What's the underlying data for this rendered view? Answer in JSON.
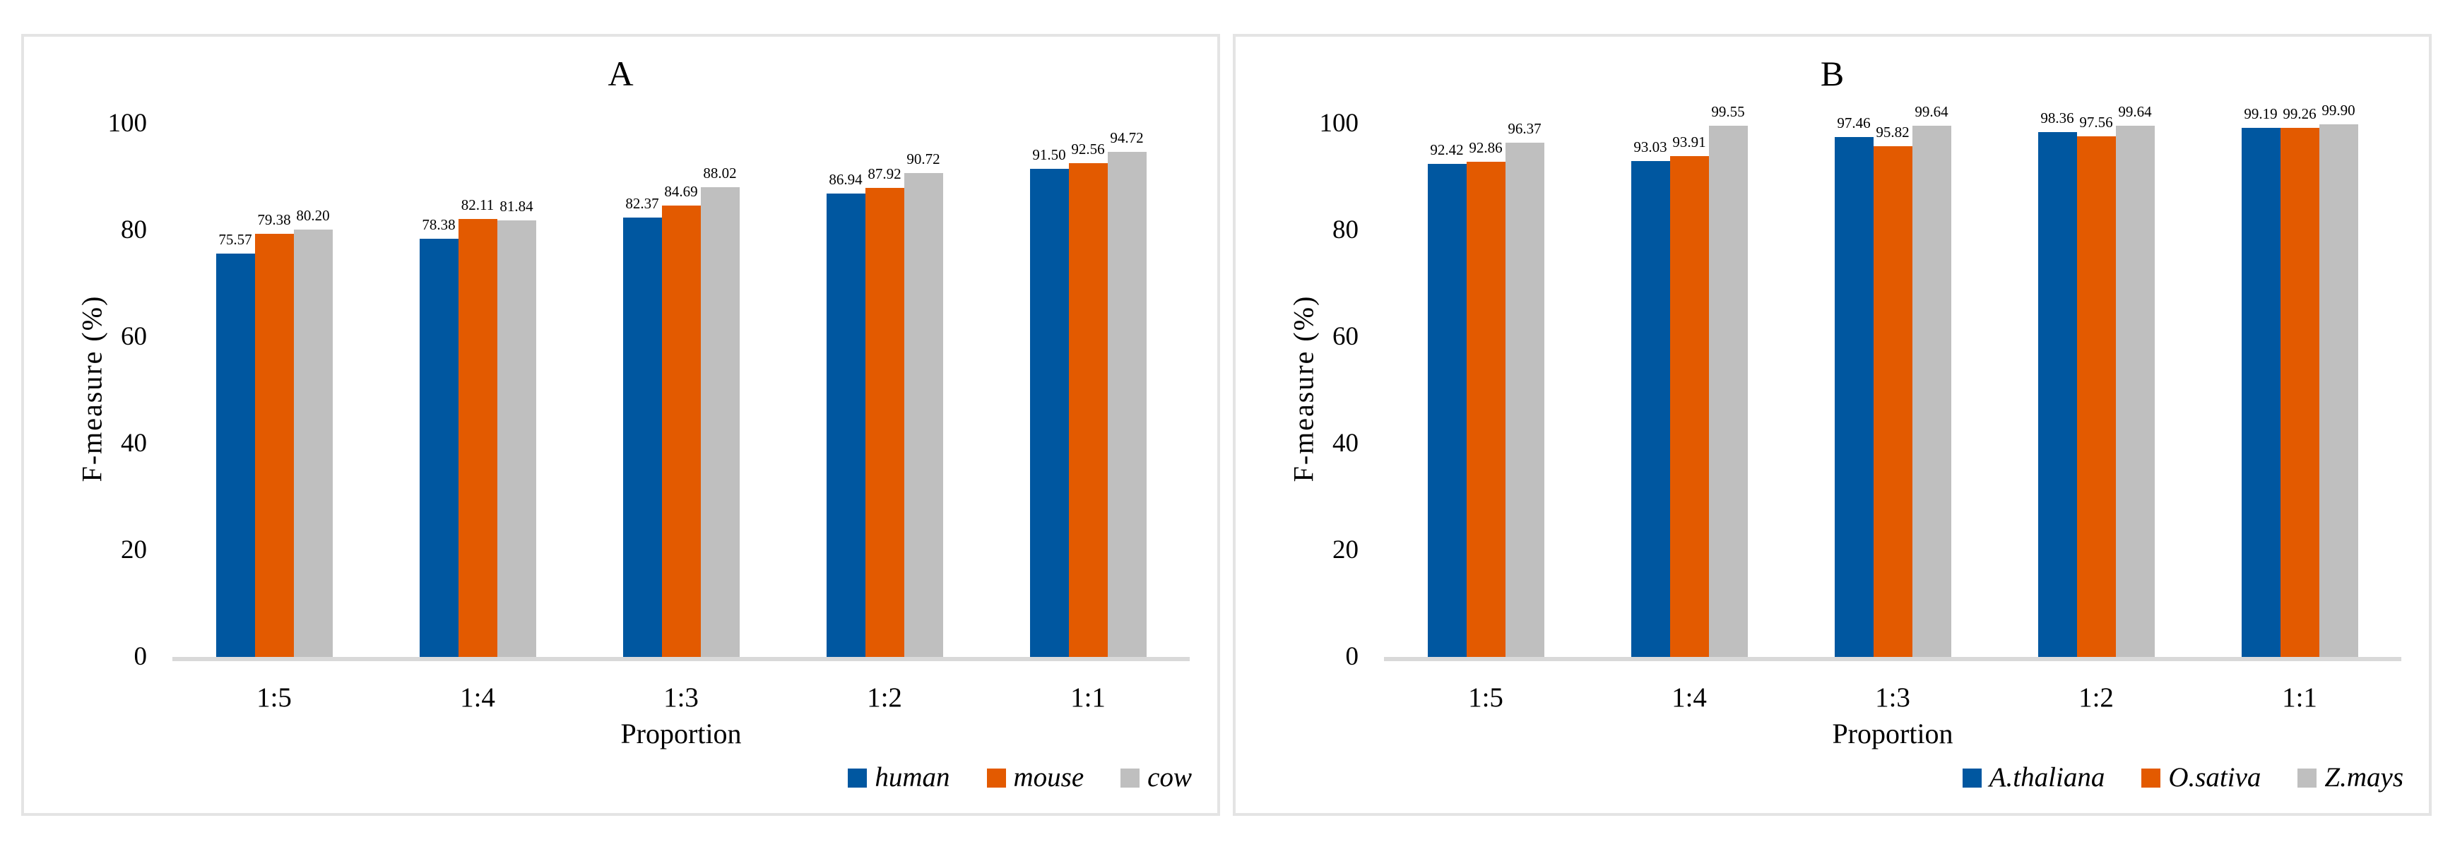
{
  "figure": {
    "background": "#FFFFFF"
  },
  "colors": {
    "series_blue": "#0057A0",
    "series_orange": "#E35A00",
    "series_gray": "#BFBFBF",
    "axis_line": "#D9D9D9",
    "panel_border": "#E4E4E4",
    "text": "#000000",
    "background": "#FFFFFF"
  },
  "chart_data": [
    {
      "type": "bar",
      "title": "A",
      "xlabel": "Proportion",
      "ylabel": "F-measure (%)",
      "categories": [
        "1:5",
        "1:4",
        "1:3",
        "1:2",
        "1:1"
      ],
      "series": [
        {
          "name": "human",
          "color": "#0057A0",
          "values": [
            75.57,
            78.38,
            82.37,
            86.94,
            91.5
          ]
        },
        {
          "name": "mouse",
          "color": "#E35A00",
          "values": [
            79.38,
            82.11,
            84.69,
            87.92,
            92.56
          ]
        },
        {
          "name": "cow",
          "color": "#BFBFBF",
          "values": [
            80.2,
            81.84,
            88.02,
            90.72,
            94.72
          ]
        }
      ],
      "yticks": [
        0,
        20,
        40,
        60,
        80,
        100
      ],
      "ylim": [
        0,
        100
      ],
      "grid": false,
      "legend_position": "bottom-right",
      "value_labels": true,
      "value_label_format": "0.00"
    },
    {
      "type": "bar",
      "title": "B",
      "xlabel": "Proportion",
      "ylabel": "F-measure (%)",
      "categories": [
        "1:5",
        "1:4",
        "1:3",
        "1:2",
        "1:1"
      ],
      "series": [
        {
          "name": "A.thaliana",
          "color": "#0057A0",
          "values": [
            92.42,
            93.03,
            97.46,
            98.36,
            99.19
          ]
        },
        {
          "name": "O.sativa",
          "color": "#E35A00",
          "values": [
            92.86,
            93.91,
            95.82,
            97.56,
            99.26
          ]
        },
        {
          "name": "Z.mays",
          "color": "#BFBFBF",
          "values": [
            96.37,
            99.55,
            99.64,
            99.64,
            99.9
          ]
        }
      ],
      "yticks": [
        0,
        20,
        40,
        60,
        80,
        100
      ],
      "ylim": [
        0,
        100
      ],
      "grid": false,
      "legend_position": "bottom-right",
      "value_labels": true,
      "value_label_format": "0.00"
    }
  ]
}
